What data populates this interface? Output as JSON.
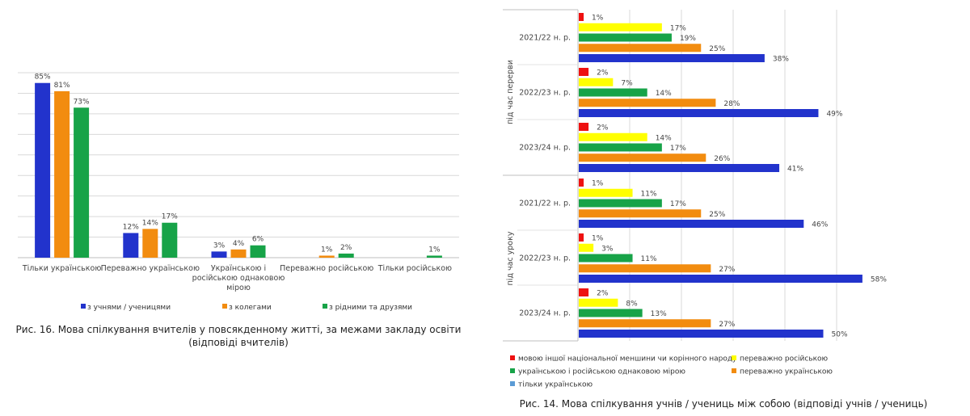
{
  "chart_data": [
    {
      "type": "bar",
      "categories": [
        "Тільки українською",
        "Переважно українською",
        "Українською і російською однаковою мірою",
        "Переважно російською",
        "Тільки російською"
      ],
      "category_lines": [
        [
          "Тільки українською"
        ],
        [
          "Переважно українською"
        ],
        [
          "Українською і",
          "російською однаковою",
          "мірою"
        ],
        [
          "Переважно російською"
        ],
        [
          "Тільки російською"
        ]
      ],
      "series": [
        {
          "name": "з учнями / ученицями",
          "color": "#2233cc",
          "values": [
            85,
            12,
            3,
            0,
            0
          ],
          "labels": [
            "85%",
            "12%",
            "3%",
            "",
            ""
          ]
        },
        {
          "name": "з колегами",
          "color": "#f28c0f",
          "values": [
            81,
            14,
            4,
            1,
            0
          ],
          "labels": [
            "81%",
            "14%",
            "4%",
            "1%",
            ""
          ]
        },
        {
          "name": "з рідними та друзями",
          "color": "#17a348",
          "values": [
            73,
            17,
            6,
            2,
            1
          ],
          "labels": [
            "73%",
            "17%",
            "6%",
            "2%",
            "1%"
          ]
        }
      ],
      "ylim": [
        0,
        90
      ],
      "grid": true,
      "legend_position": "bottom",
      "caption_lines": [
        "Рис. 16. Мова спілкування вчителів у повсякденному житті, за межами закладу освіти",
        "(відповіді вчителів)"
      ]
    },
    {
      "type": "bar",
      "orientation": "horizontal",
      "groups": [
        {
          "name": "під час перерви",
          "years": [
            {
              "label": "2021/22 н. р.",
              "values": [
                1,
                17,
                19,
                25,
                38
              ]
            },
            {
              "label": "2022/23 н. р.",
              "values": [
                2,
                7,
                14,
                28,
                49
              ]
            },
            {
              "label": "2023/24 н. р.",
              "values": [
                2,
                14,
                17,
                26,
                41
              ]
            }
          ]
        },
        {
          "name": "під час уроку",
          "years": [
            {
              "label": "2021/22 н. р.",
              "values": [
                1,
                11,
                17,
                25,
                46
              ]
            },
            {
              "label": "2022/23 н. р.",
              "values": [
                1,
                3,
                11,
                27,
                58
              ]
            },
            {
              "label": "2023/24 н. р.",
              "values": [
                2,
                8,
                13,
                27,
                50
              ]
            }
          ]
        }
      ],
      "series": [
        {
          "name": "мовою іншої національної меншини чи корінного народу",
          "color": "#ee1111"
        },
        {
          "name": "переважно російською",
          "color": "#ffff00"
        },
        {
          "name": "українською і російською однаковою мірою",
          "color": "#17a348"
        },
        {
          "name": "переважно українською",
          "color": "#f28c0f"
        },
        {
          "name": "тільки українською",
          "color": "#2233cc"
        }
      ],
      "legend_order": [
        0,
        1,
        2,
        3,
        4
      ],
      "legend_swatch_last": "#5b9bd5",
      "value_suffix": "%",
      "xlim": [
        0,
        60
      ],
      "grid": true,
      "legend_position": "bottom",
      "caption": "Рис. 14. Мова спілкування учнів / учениць між собою (відповіді учнів / учениць)"
    }
  ]
}
